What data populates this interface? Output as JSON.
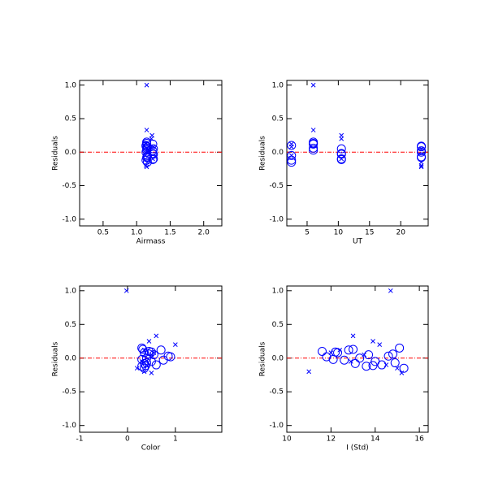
{
  "chart_data": [
    {
      "type": "scatter",
      "x_label": "Airmass",
      "y_label": "Residuals",
      "xlim": [
        0.15,
        2.27
      ],
      "ylim": [
        -1.1,
        1.07
      ],
      "xticks": [
        0.5,
        {
          "value": 1.0,
          "label": "1.0"
        },
        1.5,
        {
          "value": 2.0,
          "label": "2.0"
        }
      ],
      "yticks": [
        {
          "value": 1.0,
          "label": "1.0"
        },
        0.5,
        {
          "value": 0.0,
          "label": "0.0"
        },
        -0.5,
        {
          "value": -1.0,
          "label": "-1.0"
        }
      ],
      "reference_line": {
        "value": 0,
        "color": "#ff0000"
      },
      "series": [
        {
          "marker": "x",
          "color": "#0000ff",
          "x": [
            1.15,
            1.15,
            1.23,
            1.22,
            1.14,
            1.15,
            1.13,
            1.24,
            1.16,
            1.14,
            1.15,
            1.25
          ],
          "values": [
            1.0,
            0.33,
            0.25,
            0.2,
            0.12,
            0.05,
            -0.05,
            -0.1,
            -0.15,
            -0.2,
            -0.22,
            0.08
          ]
        },
        {
          "marker": "o",
          "color": "#0000ff",
          "x": [
            1.15,
            1.24,
            1.14,
            1.16,
            1.25,
            1.15,
            1.14,
            1.24,
            1.16,
            1.15,
            1.25,
            1.14,
            1.16,
            1.24,
            1.15,
            1.25,
            1.14,
            1.16,
            1.15,
            1.24
          ],
          "values": [
            0.15,
            0.12,
            0.1,
            0.08,
            0.05,
            0.03,
            0.0,
            -0.02,
            -0.05,
            -0.08,
            -0.1,
            -0.12,
            -0.15,
            0.02,
            0.06,
            -0.03,
            0.09,
            -0.07,
            0.13,
            -0.11
          ]
        }
      ]
    },
    {
      "type": "scatter",
      "x_label": "UT",
      "y_label": "Residuals",
      "xlim": [
        1.75,
        24.4
      ],
      "ylim": [
        -1.1,
        1.07
      ],
      "xticks": [
        5,
        10,
        15,
        20
      ],
      "yticks": [
        {
          "value": 1.0,
          "label": "1.0"
        },
        0.5,
        {
          "value": 0.0,
          "label": "0.0"
        },
        -0.5,
        {
          "value": -1.0,
          "label": "-1.0"
        }
      ],
      "reference_line": {
        "value": 0,
        "color": "#ff0000"
      },
      "series": [
        {
          "marker": "x",
          "color": "#0000ff",
          "x": [
            6.0,
            6.0,
            10.5,
            10.5,
            2.5,
            23.3,
            2.5,
            10.5,
            23.3,
            23.3,
            23.3,
            2.5
          ],
          "values": [
            1.0,
            0.33,
            0.25,
            0.2,
            0.12,
            0.05,
            -0.05,
            -0.1,
            -0.15,
            -0.2,
            -0.22,
            0.08
          ]
        },
        {
          "marker": "o",
          "color": "#0000ff",
          "x": [
            6.0,
            6.0,
            2.5,
            23.3,
            10.5,
            6.0,
            23.3,
            10.5,
            2.5,
            23.3,
            10.5,
            2.5,
            2.5,
            23.3,
            6.0,
            10.5,
            23.3,
            23.3,
            6.0,
            10.5
          ],
          "values": [
            0.15,
            0.12,
            0.1,
            0.08,
            0.05,
            0.03,
            0.0,
            -0.02,
            -0.05,
            -0.08,
            -0.1,
            -0.12,
            -0.15,
            0.02,
            0.06,
            -0.03,
            0.09,
            -0.07,
            0.13,
            -0.11
          ]
        }
      ]
    },
    {
      "type": "scatter",
      "x_label": "Color",
      "y_label": "Residuals",
      "xlim": [
        -1,
        1.97
      ],
      "ylim": [
        -1.1,
        1.07
      ],
      "xticks": [
        -1,
        0,
        1
      ],
      "yticks": [
        {
          "value": 1.0,
          "label": "1.0"
        },
        0.5,
        {
          "value": 0.0,
          "label": "0.0"
        },
        -0.5,
        {
          "value": -1.0,
          "label": "-1.0"
        }
      ],
      "reference_line": {
        "value": 0,
        "color": "#ff0000"
      },
      "series": [
        {
          "marker": "x",
          "color": "#0000ff",
          "x": [
            -0.02,
            0.6,
            0.45,
            1.0,
            0.35,
            0.5,
            0.3,
            0.4,
            0.2,
            0.35,
            0.5,
            0.55
          ],
          "values": [
            1.0,
            0.33,
            0.25,
            0.2,
            0.12,
            0.05,
            -0.05,
            -0.1,
            -0.15,
            -0.2,
            -0.22,
            0.08
          ]
        },
        {
          "marker": "o",
          "color": "#0000ff",
          "x": [
            0.3,
            0.7,
            0.45,
            0.35,
            0.55,
            0.85,
            0.4,
            0.3,
            0.5,
            0.35,
            0.6,
            0.3,
            0.35,
            0.9,
            0.45,
            0.75,
            0.5,
            0.4,
            0.32,
            0.38
          ],
          "values": [
            0.15,
            0.12,
            0.1,
            0.08,
            0.05,
            0.03,
            0.0,
            -0.02,
            -0.05,
            -0.08,
            -0.1,
            -0.12,
            -0.15,
            0.02,
            0.06,
            -0.03,
            0.09,
            -0.07,
            0.13,
            -0.11
          ]
        }
      ]
    },
    {
      "type": "scatter",
      "x_label": "I (Std)",
      "y_label": "Residuals",
      "xlim": [
        10,
        16.4
      ],
      "ylim": [
        -1.1,
        1.07
      ],
      "xticks": [
        10,
        12,
        14,
        16
      ],
      "yticks": [
        {
          "value": 1.0,
          "label": "1.0"
        },
        0.5,
        {
          "value": 0.0,
          "label": "0.0"
        },
        -0.5,
        {
          "value": -1.0,
          "label": "-1.0"
        }
      ],
      "reference_line": {
        "value": 0,
        "color": "#ff0000"
      },
      "series": [
        {
          "marker": "x",
          "color": "#0000ff",
          "x": [
            14.7,
            13.0,
            13.9,
            14.2,
            12.4,
            13.5,
            12.9,
            14.5,
            15.0,
            11.0,
            15.2,
            12.0
          ],
          "values": [
            1.0,
            0.33,
            0.25,
            0.2,
            0.12,
            0.05,
            -0.05,
            -0.1,
            -0.15,
            -0.2,
            -0.22,
            0.08
          ]
        },
        {
          "marker": "o",
          "color": "#0000ff",
          "x": [
            15.1,
            12.8,
            11.6,
            12.3,
            13.7,
            14.6,
            13.3,
            12.1,
            14.0,
            13.1,
            14.3,
            13.6,
            15.3,
            11.8,
            14.8,
            12.6,
            12.2,
            14.9,
            13.0,
            13.9
          ],
          "values": [
            0.15,
            0.12,
            0.1,
            0.08,
            0.05,
            0.03,
            0.0,
            -0.02,
            -0.05,
            -0.08,
            -0.1,
            -0.12,
            -0.15,
            0.02,
            0.06,
            -0.03,
            0.09,
            -0.07,
            0.13,
            -0.11
          ]
        }
      ]
    }
  ]
}
